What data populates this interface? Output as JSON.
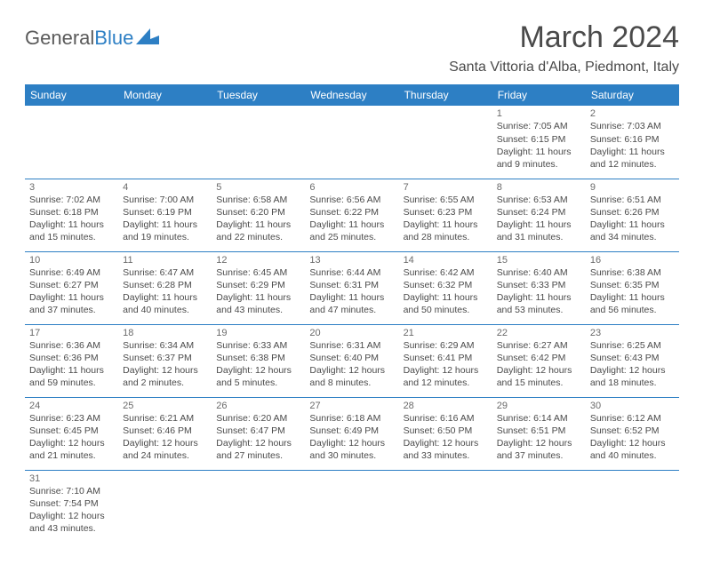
{
  "logo": {
    "text1": "General",
    "text2": "Blue"
  },
  "title": "March 2024",
  "location": "Santa Vittoria d'Alba, Piedmont, Italy",
  "colors": {
    "header_bg": "#2d7fc4",
    "header_text": "#ffffff",
    "cell_border": "#2d7fc4",
    "text": "#4a4a4a",
    "daynum": "#6a6a6a",
    "background": "#ffffff"
  },
  "typography": {
    "title_fontsize": 34,
    "location_fontsize": 16,
    "header_fontsize": 12,
    "cell_fontsize": 10.5
  },
  "daysOfWeek": [
    "Sunday",
    "Monday",
    "Tuesday",
    "Wednesday",
    "Thursday",
    "Friday",
    "Saturday"
  ],
  "weeks": [
    [
      null,
      null,
      null,
      null,
      null,
      {
        "num": "1",
        "sunrise": "Sunrise: 7:05 AM",
        "sunset": "Sunset: 6:15 PM",
        "d1": "Daylight: 11 hours",
        "d2": "and 9 minutes."
      },
      {
        "num": "2",
        "sunrise": "Sunrise: 7:03 AM",
        "sunset": "Sunset: 6:16 PM",
        "d1": "Daylight: 11 hours",
        "d2": "and 12 minutes."
      }
    ],
    [
      {
        "num": "3",
        "sunrise": "Sunrise: 7:02 AM",
        "sunset": "Sunset: 6:18 PM",
        "d1": "Daylight: 11 hours",
        "d2": "and 15 minutes."
      },
      {
        "num": "4",
        "sunrise": "Sunrise: 7:00 AM",
        "sunset": "Sunset: 6:19 PM",
        "d1": "Daylight: 11 hours",
        "d2": "and 19 minutes."
      },
      {
        "num": "5",
        "sunrise": "Sunrise: 6:58 AM",
        "sunset": "Sunset: 6:20 PM",
        "d1": "Daylight: 11 hours",
        "d2": "and 22 minutes."
      },
      {
        "num": "6",
        "sunrise": "Sunrise: 6:56 AM",
        "sunset": "Sunset: 6:22 PM",
        "d1": "Daylight: 11 hours",
        "d2": "and 25 minutes."
      },
      {
        "num": "7",
        "sunrise": "Sunrise: 6:55 AM",
        "sunset": "Sunset: 6:23 PM",
        "d1": "Daylight: 11 hours",
        "d2": "and 28 minutes."
      },
      {
        "num": "8",
        "sunrise": "Sunrise: 6:53 AM",
        "sunset": "Sunset: 6:24 PM",
        "d1": "Daylight: 11 hours",
        "d2": "and 31 minutes."
      },
      {
        "num": "9",
        "sunrise": "Sunrise: 6:51 AM",
        "sunset": "Sunset: 6:26 PM",
        "d1": "Daylight: 11 hours",
        "d2": "and 34 minutes."
      }
    ],
    [
      {
        "num": "10",
        "sunrise": "Sunrise: 6:49 AM",
        "sunset": "Sunset: 6:27 PM",
        "d1": "Daylight: 11 hours",
        "d2": "and 37 minutes."
      },
      {
        "num": "11",
        "sunrise": "Sunrise: 6:47 AM",
        "sunset": "Sunset: 6:28 PM",
        "d1": "Daylight: 11 hours",
        "d2": "and 40 minutes."
      },
      {
        "num": "12",
        "sunrise": "Sunrise: 6:45 AM",
        "sunset": "Sunset: 6:29 PM",
        "d1": "Daylight: 11 hours",
        "d2": "and 43 minutes."
      },
      {
        "num": "13",
        "sunrise": "Sunrise: 6:44 AM",
        "sunset": "Sunset: 6:31 PM",
        "d1": "Daylight: 11 hours",
        "d2": "and 47 minutes."
      },
      {
        "num": "14",
        "sunrise": "Sunrise: 6:42 AM",
        "sunset": "Sunset: 6:32 PM",
        "d1": "Daylight: 11 hours",
        "d2": "and 50 minutes."
      },
      {
        "num": "15",
        "sunrise": "Sunrise: 6:40 AM",
        "sunset": "Sunset: 6:33 PM",
        "d1": "Daylight: 11 hours",
        "d2": "and 53 minutes."
      },
      {
        "num": "16",
        "sunrise": "Sunrise: 6:38 AM",
        "sunset": "Sunset: 6:35 PM",
        "d1": "Daylight: 11 hours",
        "d2": "and 56 minutes."
      }
    ],
    [
      {
        "num": "17",
        "sunrise": "Sunrise: 6:36 AM",
        "sunset": "Sunset: 6:36 PM",
        "d1": "Daylight: 11 hours",
        "d2": "and 59 minutes."
      },
      {
        "num": "18",
        "sunrise": "Sunrise: 6:34 AM",
        "sunset": "Sunset: 6:37 PM",
        "d1": "Daylight: 12 hours",
        "d2": "and 2 minutes."
      },
      {
        "num": "19",
        "sunrise": "Sunrise: 6:33 AM",
        "sunset": "Sunset: 6:38 PM",
        "d1": "Daylight: 12 hours",
        "d2": "and 5 minutes."
      },
      {
        "num": "20",
        "sunrise": "Sunrise: 6:31 AM",
        "sunset": "Sunset: 6:40 PM",
        "d1": "Daylight: 12 hours",
        "d2": "and 8 minutes."
      },
      {
        "num": "21",
        "sunrise": "Sunrise: 6:29 AM",
        "sunset": "Sunset: 6:41 PM",
        "d1": "Daylight: 12 hours",
        "d2": "and 12 minutes."
      },
      {
        "num": "22",
        "sunrise": "Sunrise: 6:27 AM",
        "sunset": "Sunset: 6:42 PM",
        "d1": "Daylight: 12 hours",
        "d2": "and 15 minutes."
      },
      {
        "num": "23",
        "sunrise": "Sunrise: 6:25 AM",
        "sunset": "Sunset: 6:43 PM",
        "d1": "Daylight: 12 hours",
        "d2": "and 18 minutes."
      }
    ],
    [
      {
        "num": "24",
        "sunrise": "Sunrise: 6:23 AM",
        "sunset": "Sunset: 6:45 PM",
        "d1": "Daylight: 12 hours",
        "d2": "and 21 minutes."
      },
      {
        "num": "25",
        "sunrise": "Sunrise: 6:21 AM",
        "sunset": "Sunset: 6:46 PM",
        "d1": "Daylight: 12 hours",
        "d2": "and 24 minutes."
      },
      {
        "num": "26",
        "sunrise": "Sunrise: 6:20 AM",
        "sunset": "Sunset: 6:47 PM",
        "d1": "Daylight: 12 hours",
        "d2": "and 27 minutes."
      },
      {
        "num": "27",
        "sunrise": "Sunrise: 6:18 AM",
        "sunset": "Sunset: 6:49 PM",
        "d1": "Daylight: 12 hours",
        "d2": "and 30 minutes."
      },
      {
        "num": "28",
        "sunrise": "Sunrise: 6:16 AM",
        "sunset": "Sunset: 6:50 PM",
        "d1": "Daylight: 12 hours",
        "d2": "and 33 minutes."
      },
      {
        "num": "29",
        "sunrise": "Sunrise: 6:14 AM",
        "sunset": "Sunset: 6:51 PM",
        "d1": "Daylight: 12 hours",
        "d2": "and 37 minutes."
      },
      {
        "num": "30",
        "sunrise": "Sunrise: 6:12 AM",
        "sunset": "Sunset: 6:52 PM",
        "d1": "Daylight: 12 hours",
        "d2": "and 40 minutes."
      }
    ],
    [
      {
        "num": "31",
        "sunrise": "Sunrise: 7:10 AM",
        "sunset": "Sunset: 7:54 PM",
        "d1": "Daylight: 12 hours",
        "d2": "and 43 minutes."
      },
      null,
      null,
      null,
      null,
      null,
      null
    ]
  ]
}
